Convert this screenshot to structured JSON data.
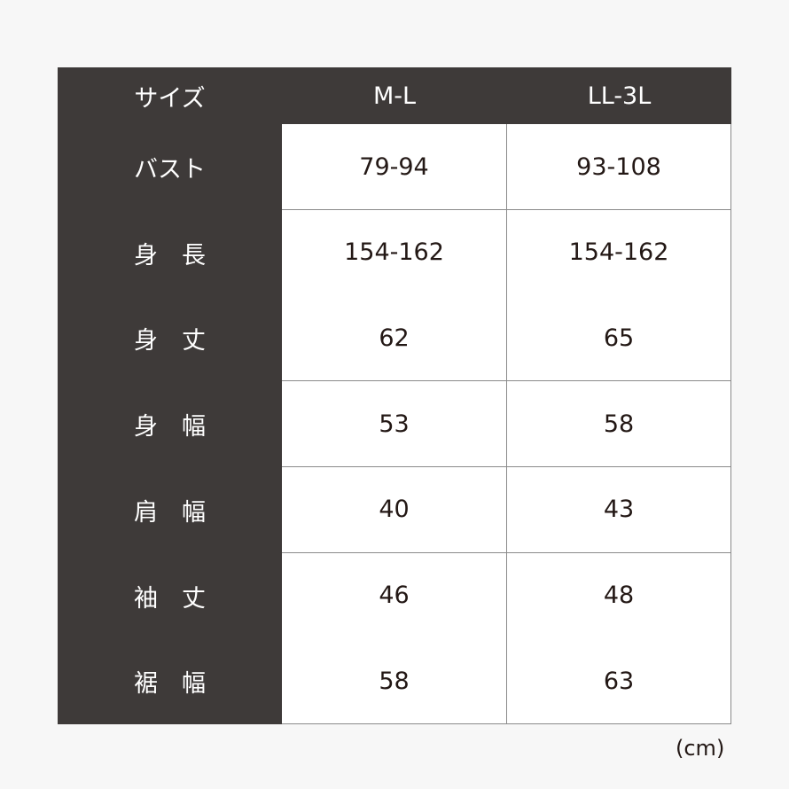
{
  "table": {
    "headers": [
      "サイズ",
      "M-L",
      "LL-3L"
    ],
    "rows": [
      {
        "label": "バスト",
        "values": [
          "79-94",
          "93-108"
        ]
      },
      {
        "label": "身　長",
        "values": [
          "154-162",
          "154-162"
        ]
      },
      {
        "label": "身　丈",
        "values": [
          "62",
          "65"
        ]
      },
      {
        "label": "身　幅",
        "values": [
          "53",
          "58"
        ]
      },
      {
        "label": "肩　幅",
        "values": [
          "40",
          "43"
        ]
      },
      {
        "label": "袖　丈",
        "values": [
          "46",
          "48"
        ]
      },
      {
        "label": "裾　幅",
        "values": [
          "58",
          "63"
        ]
      }
    ]
  },
  "unit": "(cm)",
  "colors": {
    "header_bg": "#3e3a39",
    "background": "#f7f7f7",
    "cell_bg": "#ffffff"
  }
}
